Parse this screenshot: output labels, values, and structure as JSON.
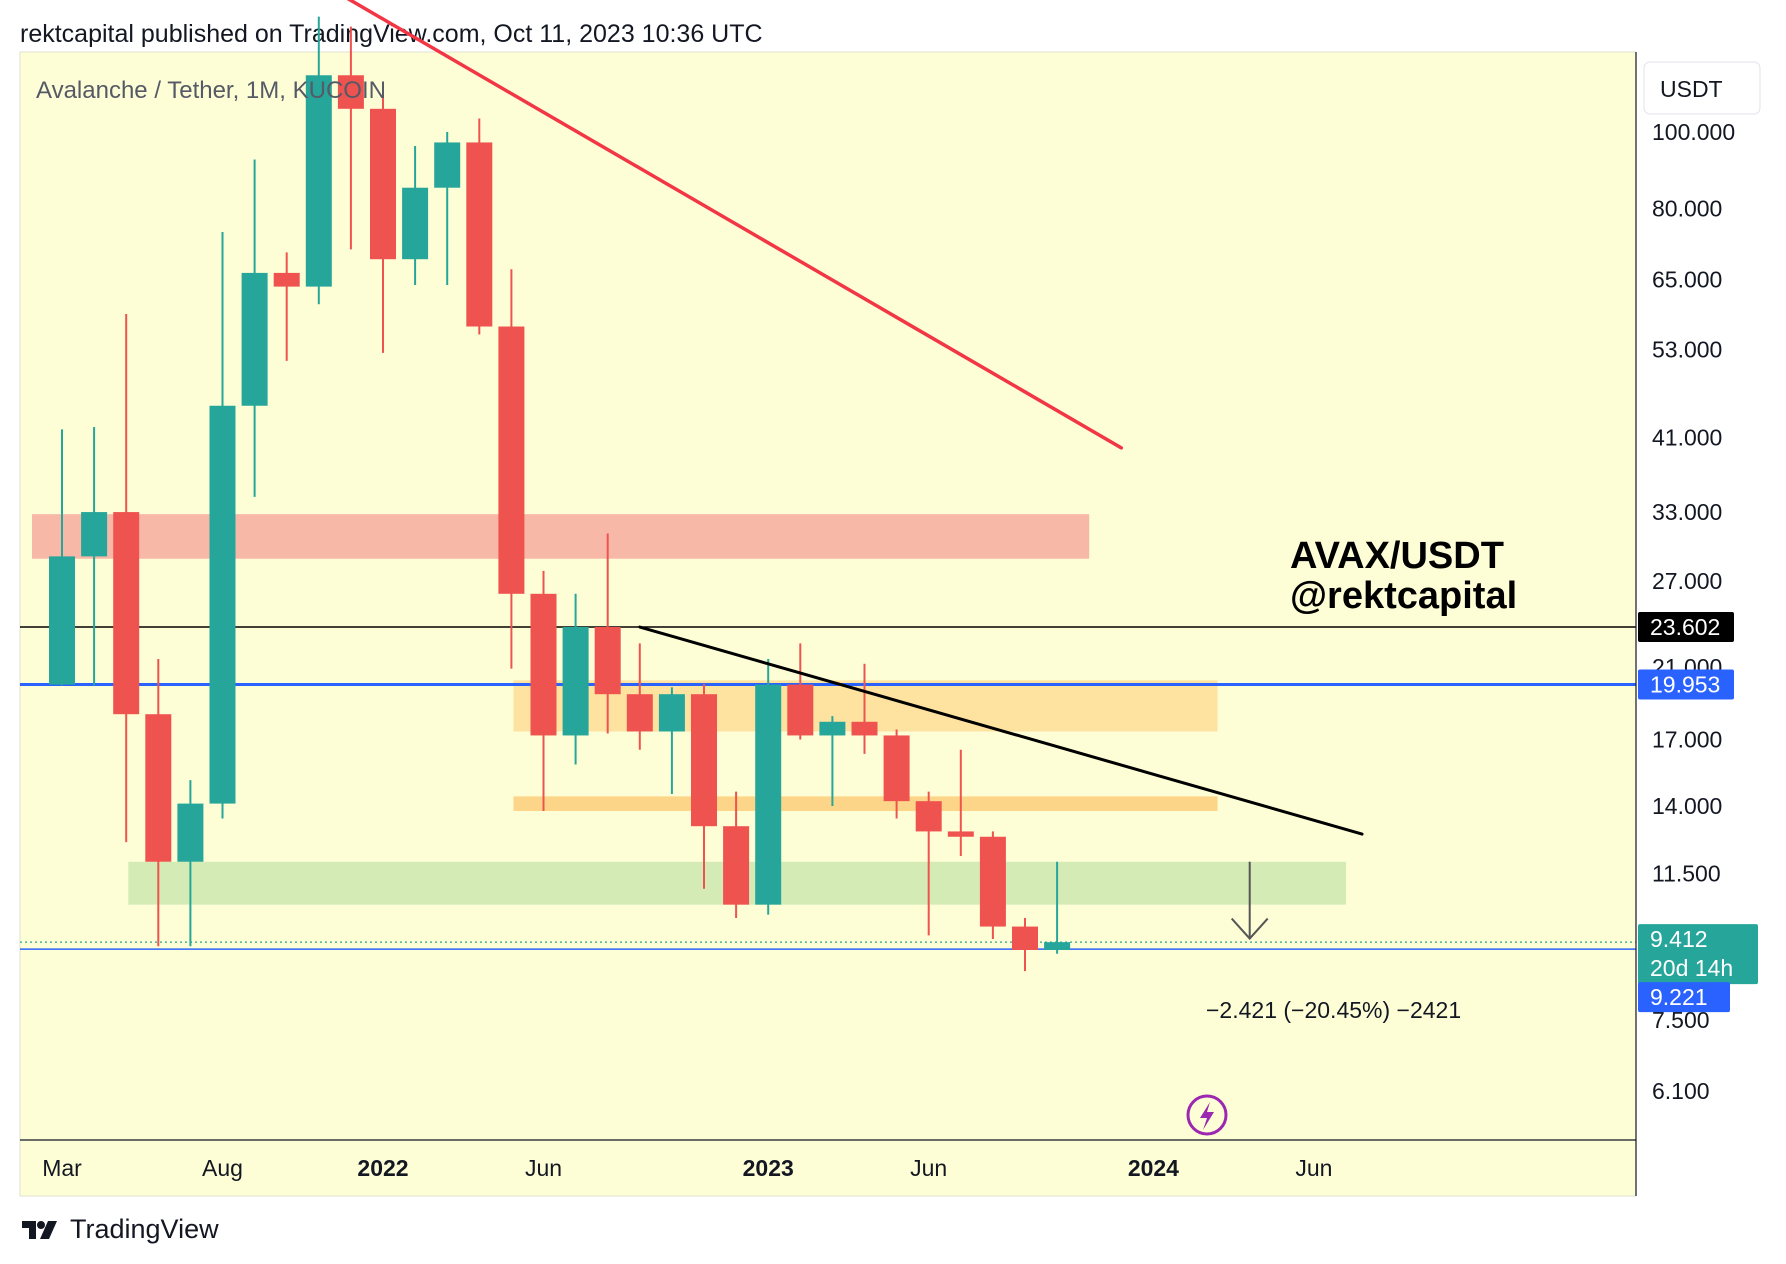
{
  "header": {
    "text": "rektcapital published on TradingView.com, Oct 11, 2023 10:36 UTC"
  },
  "footer": {
    "brand": "TradingView"
  },
  "colors": {
    "background": "#fefed6",
    "up": "#26a69a",
    "down": "#ef5350",
    "trendline_red": "#f23645",
    "trendline_black": "#000000",
    "blue_line": "#2962ff",
    "zone_red": "#f8b8a8",
    "zone_orange_light": "#fde2a0",
    "zone_orange": "#fdd589",
    "zone_green": "#d4ebb6"
  },
  "chart_data": {
    "type": "candlestick",
    "symbol_label": "Avalanche / Tether, 1M, KUCOIN",
    "currency_label": "USDT",
    "scale": "log",
    "ylim": [
      5.4,
      140
    ],
    "y_ticks": [
      "100.000",
      "80.000",
      "65.000",
      "53.000",
      "41.000",
      "33.000",
      "27.000",
      "21.000",
      "17.000",
      "14.000",
      "11.500",
      "7.500",
      "6.100"
    ],
    "x_ticks": [
      {
        "label": "Mar",
        "bold": false,
        "index": 0
      },
      {
        "label": "Aug",
        "bold": false,
        "index": 5
      },
      {
        "label": "2022",
        "bold": true,
        "index": 10
      },
      {
        "label": "Jun",
        "bold": false,
        "index": 15
      },
      {
        "label": "2023",
        "bold": true,
        "index": 22
      },
      {
        "label": "Jun",
        "bold": false,
        "index": 27
      },
      {
        "label": "2024",
        "bold": true,
        "index": 34
      },
      {
        "label": "Jun",
        "bold": false,
        "index": 39
      }
    ],
    "candles": [
      {
        "month": "2021-03",
        "open": 19.95,
        "high": 42.0,
        "low": 19.9,
        "close": 29.0
      },
      {
        "month": "2021-04",
        "open": 29.0,
        "high": 42.3,
        "low": 19.9,
        "close": 33.0
      },
      {
        "month": "2021-05",
        "open": 33.0,
        "high": 58.8,
        "low": 12.6,
        "close": 18.3
      },
      {
        "month": "2021-06",
        "open": 18.3,
        "high": 21.5,
        "low": 9.3,
        "close": 11.9
      },
      {
        "month": "2021-07",
        "open": 11.9,
        "high": 15.1,
        "low": 9.3,
        "close": 14.1
      },
      {
        "month": "2021-08",
        "open": 14.1,
        "high": 74.7,
        "low": 13.5,
        "close": 45.0
      },
      {
        "month": "2021-09",
        "open": 45.0,
        "high": 92.3,
        "low": 34.5,
        "close": 66.3
      },
      {
        "month": "2021-10",
        "open": 66.3,
        "high": 70.4,
        "low": 51.3,
        "close": 63.7
      },
      {
        "month": "2021-11",
        "open": 63.7,
        "high": 147.0,
        "low": 60.5,
        "close": 118.0
      },
      {
        "month": "2021-12",
        "open": 118.0,
        "high": 136.0,
        "low": 71.0,
        "close": 107.0
      },
      {
        "month": "2022-01",
        "open": 107.0,
        "high": 112.0,
        "low": 52.5,
        "close": 69.0
      },
      {
        "month": "2022-02",
        "open": 69.0,
        "high": 96.0,
        "low": 64.0,
        "close": 85.0
      },
      {
        "month": "2022-03",
        "open": 85.0,
        "high": 100.0,
        "low": 64.0,
        "close": 97.0
      },
      {
        "month": "2022-04",
        "open": 97.0,
        "high": 104.0,
        "low": 55.4,
        "close": 56.7
      },
      {
        "month": "2022-05",
        "open": 56.7,
        "high": 67.0,
        "low": 20.9,
        "close": 26.0
      },
      {
        "month": "2022-06",
        "open": 26.0,
        "high": 27.8,
        "low": 13.8,
        "close": 17.2
      },
      {
        "month": "2022-07",
        "open": 17.2,
        "high": 26.0,
        "low": 15.8,
        "close": 23.6
      },
      {
        "month": "2022-08",
        "open": 23.6,
        "high": 31.0,
        "low": 17.3,
        "close": 19.4
      },
      {
        "month": "2022-09",
        "open": 19.4,
        "high": 22.5,
        "low": 16.5,
        "close": 17.4
      },
      {
        "month": "2022-10",
        "open": 17.4,
        "high": 19.8,
        "low": 14.5,
        "close": 19.4
      },
      {
        "month": "2022-11",
        "open": 19.4,
        "high": 20.0,
        "low": 11.0,
        "close": 13.2
      },
      {
        "month": "2022-12",
        "open": 13.2,
        "high": 14.6,
        "low": 10.1,
        "close": 10.5
      },
      {
        "month": "2023-01",
        "open": 10.5,
        "high": 21.5,
        "low": 10.2,
        "close": 19.95
      },
      {
        "month": "2023-02",
        "open": 19.95,
        "high": 22.5,
        "low": 17.0,
        "close": 17.2
      },
      {
        "month": "2023-03",
        "open": 17.2,
        "high": 18.2,
        "low": 14.0,
        "close": 17.9
      },
      {
        "month": "2023-04",
        "open": 17.9,
        "high": 21.2,
        "low": 16.3,
        "close": 17.2
      },
      {
        "month": "2023-05",
        "open": 17.2,
        "high": 17.5,
        "low": 13.5,
        "close": 14.2
      },
      {
        "month": "2023-06",
        "open": 14.2,
        "high": 14.6,
        "low": 9.6,
        "close": 13.0
      },
      {
        "month": "2023-07",
        "open": 13.0,
        "high": 16.5,
        "low": 12.1,
        "close": 12.8
      },
      {
        "month": "2023-08",
        "open": 12.8,
        "high": 13.0,
        "low": 9.5,
        "close": 9.85
      },
      {
        "month": "2023-09",
        "open": 9.85,
        "high": 10.1,
        "low": 8.65,
        "close": 9.2
      },
      {
        "month": "2023-10",
        "open": 9.2,
        "high": 11.9,
        "low": 9.1,
        "close": 9.412
      }
    ],
    "zones": [
      {
        "name": "zone-red",
        "from_index": 0,
        "to_index": 32,
        "low": 28.8,
        "high": 32.8,
        "color": "#f8b8a8"
      },
      {
        "name": "zone-orange-upper",
        "from_index": 15,
        "to_index": 36,
        "low": 17.4,
        "high": 20.2,
        "color": "#fde2a0"
      },
      {
        "name": "zone-orange-lower",
        "from_index": 15,
        "to_index": 36,
        "low": 13.8,
        "high": 14.4,
        "color": "#fdd589"
      },
      {
        "name": "zone-green",
        "from_index": 3,
        "to_index": 40,
        "low": 10.5,
        "high": 11.9,
        "color": "#d4ebb6"
      }
    ],
    "trendlines": [
      {
        "name": "red-trendline",
        "from": {
          "index": 8,
          "value": 155.0
        },
        "to": {
          "index": 33,
          "value": 39.8
        },
        "color": "#f23645",
        "width": 3.5
      },
      {
        "name": "black-trendline",
        "from": {
          "index": 18,
          "value": 23.6
        },
        "to": {
          "index": 40.5,
          "value": 12.9
        },
        "color": "#000000",
        "width": 3
      }
    ],
    "horizontal_lines": [
      {
        "name": "black-level-line",
        "value": 23.602,
        "color": "#000000",
        "width": 1.5,
        "label": "23.602",
        "label_bg": "#000000",
        "label_color": "#ffffff"
      },
      {
        "name": "blue-level-line",
        "value": 19.953,
        "color": "#2962ff",
        "width": 3,
        "label": "19.953",
        "label_bg": "#2962ff",
        "label_color": "#ffffff"
      },
      {
        "name": "blue-bottom-line",
        "value": 9.221,
        "color": "#2962ff",
        "width": 1.5,
        "label": "9.221",
        "label_bg": "#2962ff",
        "label_color": "#ffffff"
      }
    ],
    "current_price": {
      "value": 9.412,
      "label": "9.412",
      "countdown": "20d 14h",
      "bg": "#26a69a"
    },
    "measure_arrow": {
      "index": 37,
      "from_value": 11.9,
      "to_value": 9.4
    },
    "measure_text": "−2.421 (−20.45%) −2421",
    "watermark": {
      "line1": "AVAX/USDT",
      "line2": "@rektcapital"
    }
  }
}
